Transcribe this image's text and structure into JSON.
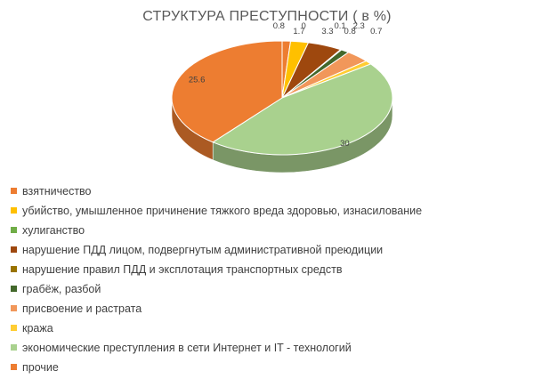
{
  "chart_data": {
    "type": "pie",
    "title": "СТРУКТУРА ПРЕСТУПНОСТИ ( в %)",
    "categories": [
      "взятничество",
      "убийство, умышленное причинение тяжкого вреда здоровью, изнасилование",
      "хулиганство",
      "нарушение ПДД лицом, подвергнутым административной преюдиции",
      "нарушение правил ПДД и эксплотация транспортных средств",
      "грабёж, разбой",
      "присвоение и растрата",
      "кража",
      "экономические преступления в сети Интернет и IT - технологий",
      "прочие"
    ],
    "values": [
      0.8,
      1.7,
      0,
      3.3,
      0.1,
      0.8,
      2.3,
      0.7,
      30,
      25.6
    ],
    "labels": [
      "0.8",
      "1.7",
      "0",
      "3.3",
      "0.1",
      "0.8",
      "2.3",
      "0.7",
      "30",
      "25.6"
    ],
    "colors": [
      "#ED7D31",
      "#FFC000",
      "#70AD47",
      "#9E480E",
      "#997300",
      "#43682B",
      "#F1975A",
      "#FFCD33",
      "#A9D18E",
      "#ED7D31"
    ],
    "slice_order": [
      0,
      1,
      2,
      3,
      4,
      5,
      6,
      7,
      8,
      9
    ],
    "style": "3d-pie",
    "legend_position": "bottom"
  }
}
